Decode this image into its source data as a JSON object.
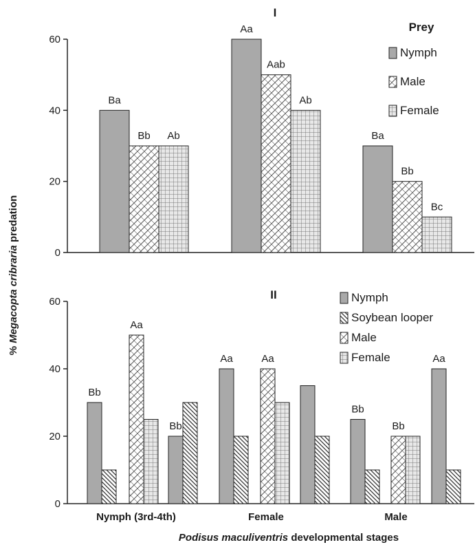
{
  "figure": {
    "ylabel_prefix": "% ",
    "ylabel_italic": "Megacopta cribraria",
    "ylabel_suffix": " predation",
    "xlabel_italic": "Podisus maculiventris",
    "xlabel_suffix": " developmental stages"
  },
  "chart_data": [
    {
      "type": "bar",
      "title": "I",
      "legend_title": "Prey",
      "legend_position": "top-right",
      "categories": [
        "Nymph (3rd-4th)",
        "Female",
        "Male"
      ],
      "ylim": [
        0,
        60
      ],
      "yticks": [
        "0",
        "20",
        "40",
        "60"
      ],
      "grid": false,
      "series": [
        {
          "name": "Nymph",
          "pattern": "solid",
          "values": [
            40,
            60,
            30
          ],
          "labels": [
            "Ba",
            "Aa",
            "Ba"
          ]
        },
        {
          "name": "Male",
          "pattern": "brick",
          "values": [
            30,
            50,
            20
          ],
          "labels": [
            "Bb",
            "Aab",
            "Bb"
          ]
        },
        {
          "name": "Female",
          "pattern": "grid",
          "values": [
            30,
            40,
            10
          ],
          "labels": [
            "Ab",
            "Ab",
            "Bc"
          ]
        }
      ]
    },
    {
      "type": "bar",
      "title": "II",
      "legend_position": "top-right",
      "categories": [
        "Nymph (3rd-4th)",
        "Female",
        "Male"
      ],
      "ylim": [
        0,
        60
      ],
      "yticks": [
        "0",
        "20",
        "40",
        "60"
      ],
      "grid": false,
      "series": [
        {
          "name": "Nymph",
          "pattern": "solid",
          "values": [
            30,
            40,
            25
          ],
          "labels": [
            "Bb",
            "Aa",
            "Bb"
          ]
        },
        {
          "name": "Soybean looper",
          "pattern": "diag",
          "values": [
            10,
            20,
            10
          ],
          "labels": [
            "",
            "",
            ""
          ]
        },
        {
          "name": "Male",
          "pattern": "brick",
          "values": [
            50,
            40,
            20
          ],
          "labels": [
            "Aa",
            "Aa",
            "Bb"
          ]
        },
        {
          "name": "Female",
          "pattern": "grid",
          "values": [
            25,
            30,
            20
          ],
          "labels": [
            "",
            "",
            ""
          ]
        },
        {
          "name": "Nymph",
          "pattern": "solid",
          "values": [
            20,
            35,
            40
          ],
          "labels": [
            "Bb",
            "",
            "Aa"
          ],
          "legend": false
        },
        {
          "name": "Soybean looper",
          "pattern": "diag",
          "values": [
            30,
            20,
            10
          ],
          "labels": [
            "",
            "",
            ""
          ],
          "legend": false
        }
      ]
    }
  ]
}
